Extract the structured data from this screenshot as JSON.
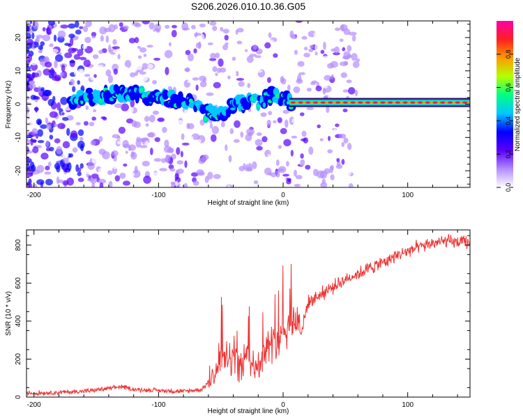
{
  "title": "S206.2026.010.10.36.G05",
  "chart_data": [
    {
      "type": "heatmap",
      "xlabel": "Height of straight line (km)",
      "ylabel": "Frequency (Hz)",
      "xlim": [
        -206,
        150
      ],
      "ylim": [
        -25,
        25
      ],
      "xticks": [
        "-200",
        "-100",
        "0",
        "100"
      ],
      "yticks": [
        "-20",
        "-10",
        "0",
        "10",
        "20"
      ],
      "colorbar": {
        "label": "Normalized spectral amplitude",
        "range": [
          0,
          1
        ],
        "ticks": [
          "0.0",
          "0.2",
          "0.4",
          "0.6",
          "0.8"
        ],
        "colors": [
          "#ffffff",
          "#b38cff",
          "#5a00ff",
          "#0000ff",
          "#00c8ff",
          "#00ff80",
          "#b4ff00",
          "#ff9a00",
          "#ff2020",
          "#ff00aa"
        ]
      },
      "ridge": [
        {
          "x": -165,
          "f": 2.0
        },
        {
          "x": -150,
          "f": 2.5
        },
        {
          "x": -130,
          "f": 3.5
        },
        {
          "x": -110,
          "f": 2.5
        },
        {
          "x": -90,
          "f": 1.5
        },
        {
          "x": -75,
          "f": 0.5
        },
        {
          "x": -65,
          "f": -2.5
        },
        {
          "x": -55,
          "f": -3.0
        },
        {
          "x": -45,
          "f": -1.5
        },
        {
          "x": -35,
          "f": 0.5
        },
        {
          "x": -20,
          "f": 0.5
        },
        {
          "x": -5,
          "f": 3.0
        },
        {
          "x": 5,
          "f": 0.5
        },
        {
          "x": 150,
          "f": 0.5
        }
      ]
    },
    {
      "type": "line",
      "xlabel": "Height of straight line (km)",
      "ylabel": "SNR (10 * v/v)",
      "xlim": [
        -206,
        150
      ],
      "ylim": [
        0,
        880
      ],
      "xticks": [
        "-200",
        "-100",
        "0",
        "100"
      ],
      "yticks": [
        "0",
        "200",
        "400",
        "600",
        "800"
      ],
      "color": "#ee3333",
      "series": [
        {
          "x": [
            -206,
            -180,
            -160,
            -140,
            -130,
            -120,
            -100,
            -80,
            -65,
            -55,
            -50,
            -45,
            -40,
            -35,
            -30,
            -25,
            -20,
            -15,
            -10,
            -5,
            0,
            5,
            10,
            15,
            20,
            30,
            40,
            50,
            60,
            70,
            80,
            90,
            100,
            110,
            120,
            130,
            140,
            150
          ],
          "y": [
            20,
            25,
            30,
            45,
            55,
            40,
            35,
            30,
            40,
            120,
            200,
            180,
            220,
            150,
            230,
            190,
            150,
            250,
            280,
            300,
            350,
            380,
            420,
            350,
            500,
            540,
            580,
            620,
            650,
            680,
            710,
            740,
            770,
            790,
            810,
            820,
            815,
            810
          ]
        }
      ]
    }
  ]
}
